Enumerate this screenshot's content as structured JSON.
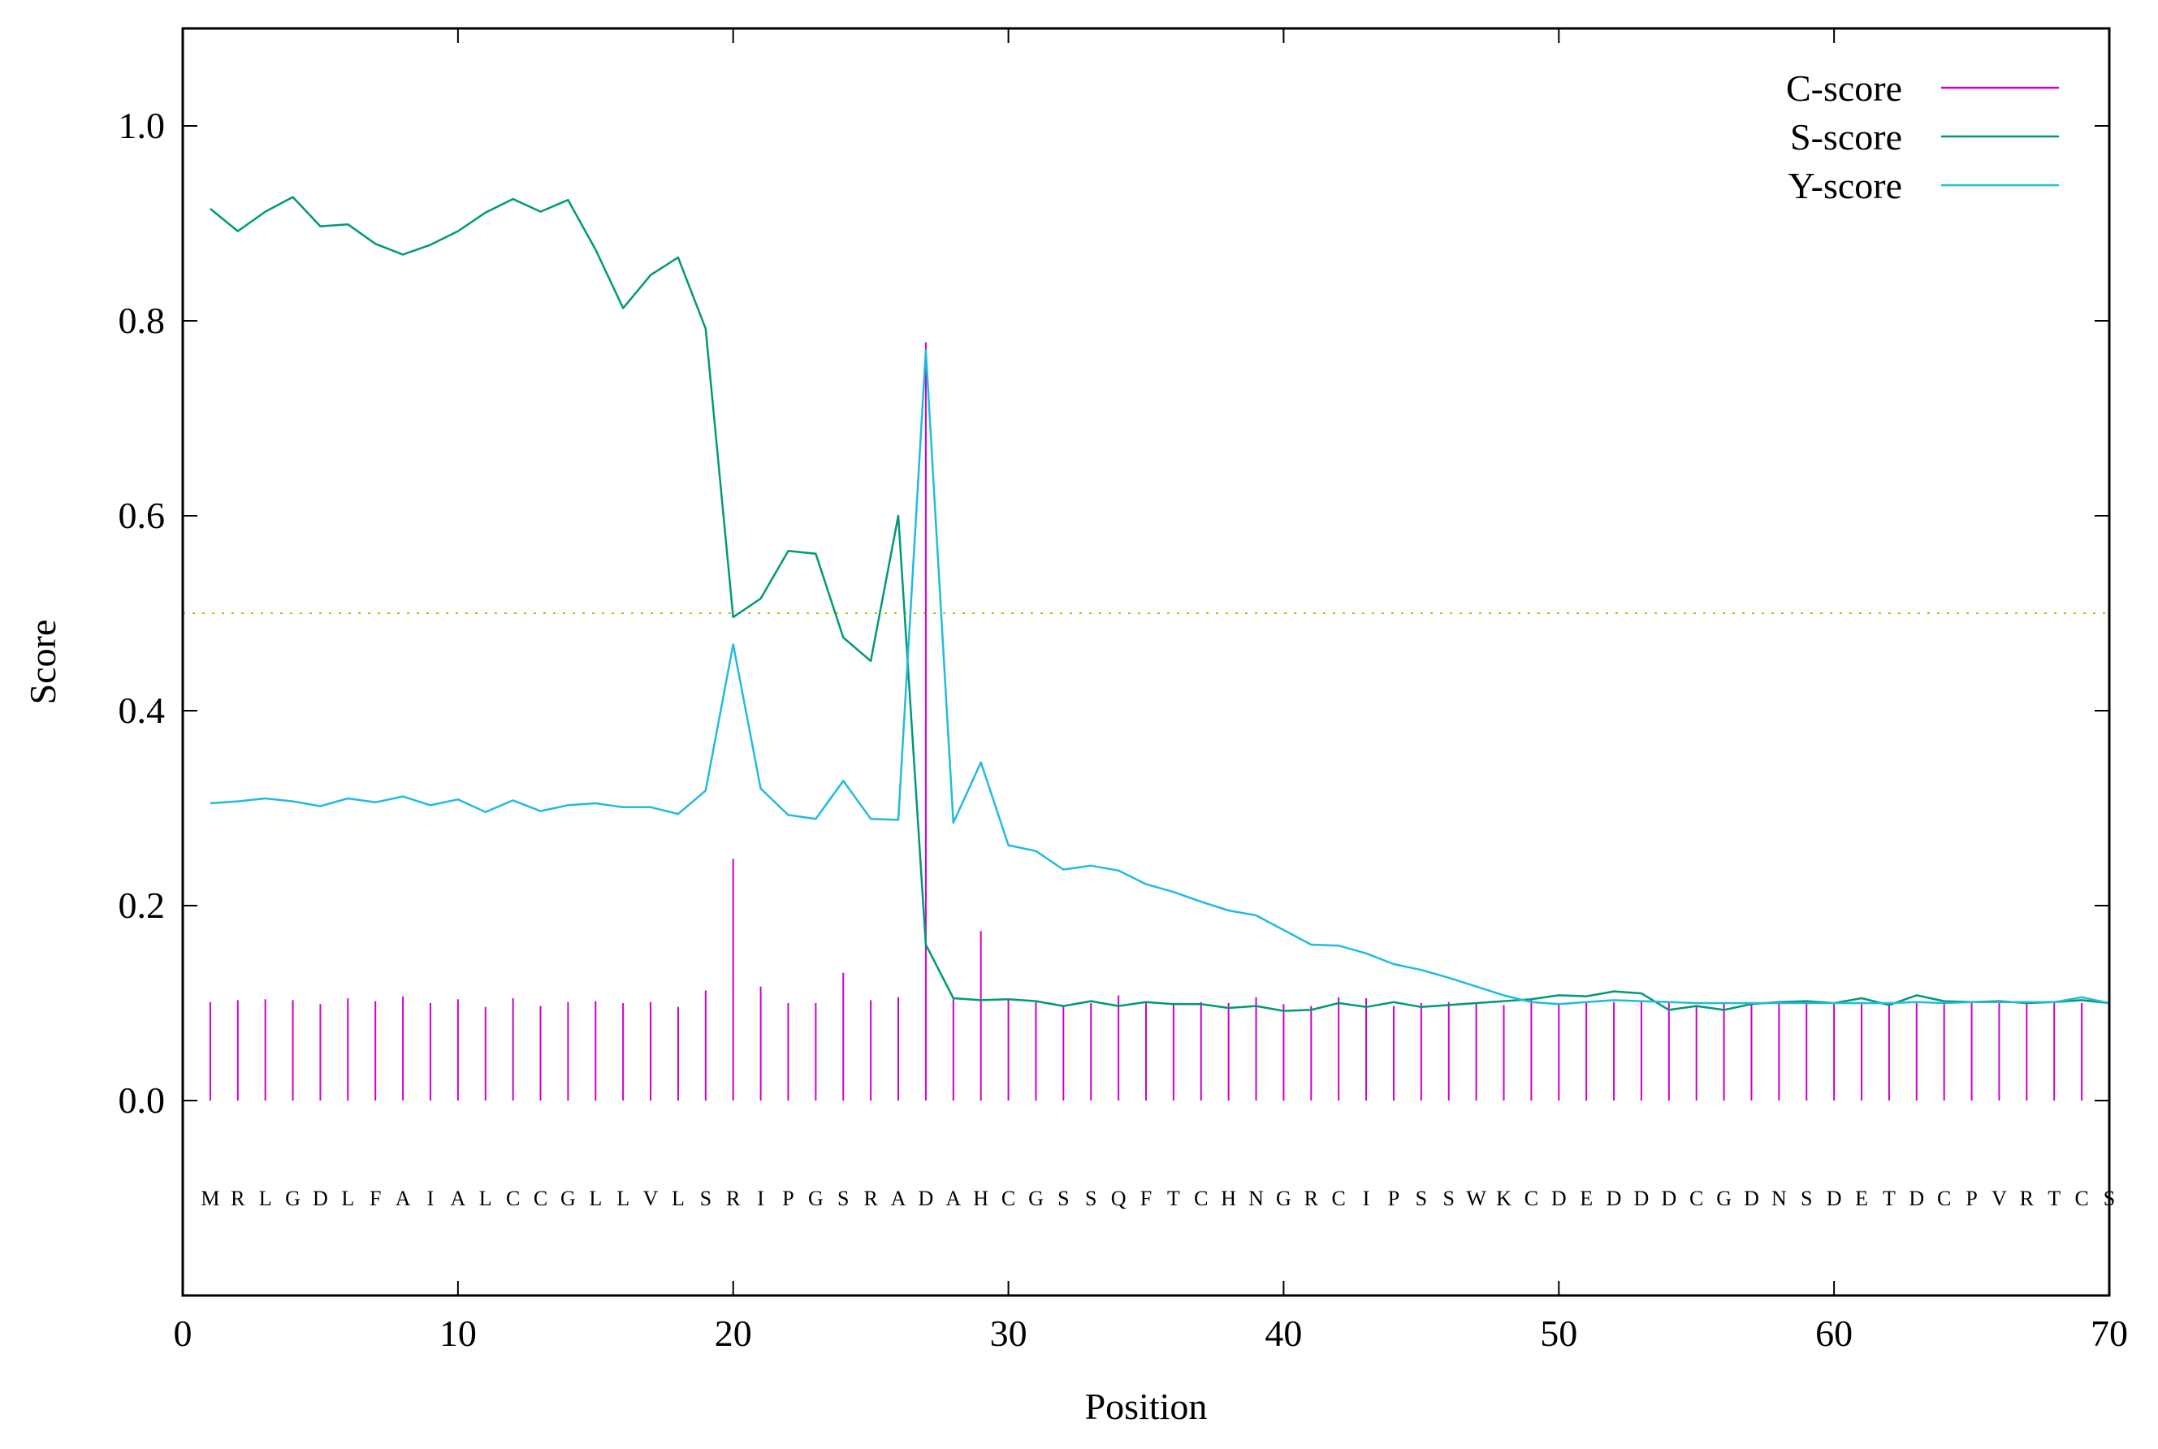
{
  "chart_data": {
    "type": "line",
    "xlabel": "Position",
    "ylabel": "Score",
    "xlim": [
      0,
      70
    ],
    "ylim": [
      -0.2,
      1.1
    ],
    "xticks": [
      0,
      10,
      20,
      30,
      40,
      50,
      60,
      70
    ],
    "yticks": [
      0.0,
      0.2,
      0.4,
      0.6,
      0.8,
      1.0
    ],
    "ytick_labels": [
      "0.0",
      "0.2",
      "0.4",
      "0.6",
      "0.8",
      "1.0"
    ],
    "threshold": 0.5,
    "legend_position": "top-right",
    "sequence": [
      "M",
      "R",
      "L",
      "G",
      "D",
      "L",
      "F",
      "A",
      "I",
      "A",
      "L",
      "C",
      "C",
      "G",
      "L",
      "L",
      "V",
      "L",
      "S",
      "R",
      "I",
      "P",
      "G",
      "S",
      "R",
      "A",
      "D",
      "A",
      "H",
      "C",
      "G",
      "S",
      "S",
      "Q",
      "F",
      "T",
      "C",
      "H",
      "N",
      "G",
      "R",
      "C",
      "I",
      "P",
      "S",
      "S",
      "W",
      "K",
      "C",
      "D",
      "E",
      "D",
      "D",
      "D",
      "C",
      "G",
      "D",
      "N",
      "S",
      "D",
      "E",
      "T",
      "D",
      "C",
      "P",
      "V",
      "R",
      "T",
      "C",
      "S"
    ],
    "series": [
      {
        "name": "C-score",
        "style": "impulse",
        "color": "#cc00cc",
        "values": [
          0.101,
          0.103,
          0.104,
          0.103,
          0.099,
          0.105,
          0.102,
          0.107,
          0.1,
          0.104,
          0.096,
          0.105,
          0.097,
          0.101,
          0.102,
          0.1,
          0.101,
          0.096,
          0.113,
          0.248,
          0.117,
          0.1,
          0.1,
          0.131,
          0.103,
          0.106,
          0.778,
          0.104,
          0.174,
          0.104,
          0.101,
          0.097,
          0.1,
          0.108,
          0.1,
          0.1,
          0.101,
          0.1,
          0.106,
          0.099,
          0.097,
          0.106,
          0.105,
          0.097,
          0.1,
          0.101,
          0.1,
          0.098,
          0.105,
          0.099,
          0.101,
          0.101,
          0.101,
          0.101,
          0.098,
          0.1,
          0.1,
          0.1,
          0.101,
          0.1,
          0.101,
          0.1,
          0.1,
          0.101,
          0.1,
          0.101,
          0.1,
          0.1,
          0.1,
          0.1
        ]
      },
      {
        "name": "S-score",
        "style": "line",
        "color": "#009977",
        "values": [
          0.915,
          0.892,
          0.912,
          0.927,
          0.897,
          0.899,
          0.879,
          0.868,
          0.878,
          0.892,
          0.911,
          0.925,
          0.912,
          0.924,
          0.873,
          0.813,
          0.847,
          0.865,
          0.792,
          0.496,
          0.515,
          0.564,
          0.561,
          0.475,
          0.451,
          0.6,
          0.16,
          0.105,
          0.103,
          0.104,
          0.102,
          0.097,
          0.102,
          0.097,
          0.101,
          0.099,
          0.099,
          0.095,
          0.097,
          0.092,
          0.093,
          0.1,
          0.096,
          0.101,
          0.096,
          0.098,
          0.1,
          0.102,
          0.104,
          0.108,
          0.107,
          0.112,
          0.11,
          0.093,
          0.097,
          0.093,
          0.099,
          0.101,
          0.102,
          0.1,
          0.105,
          0.098,
          0.108,
          0.102,
          0.101,
          0.102,
          0.1,
          0.101,
          0.103,
          0.1
        ]
      },
      {
        "name": "Y-score",
        "style": "line",
        "color": "#22bbdd",
        "values": [
          0.305,
          0.307,
          0.31,
          0.307,
          0.302,
          0.31,
          0.306,
          0.312,
          0.303,
          0.309,
          0.296,
          0.308,
          0.297,
          0.303,
          0.305,
          0.301,
          0.301,
          0.294,
          0.318,
          0.468,
          0.32,
          0.293,
          0.289,
          0.328,
          0.289,
          0.288,
          0.77,
          0.285,
          0.347,
          0.262,
          0.256,
          0.237,
          0.241,
          0.236,
          0.222,
          0.214,
          0.204,
          0.195,
          0.19,
          0.175,
          0.16,
          0.159,
          0.151,
          0.14,
          0.134,
          0.126,
          0.117,
          0.108,
          0.101,
          0.099,
          0.101,
          0.103,
          0.102,
          0.101,
          0.1,
          0.1,
          0.1,
          0.1,
          0.1,
          0.1,
          0.1,
          0.1,
          0.101,
          0.1,
          0.101,
          0.101,
          0.101,
          0.101,
          0.106,
          0.1
        ]
      }
    ]
  }
}
